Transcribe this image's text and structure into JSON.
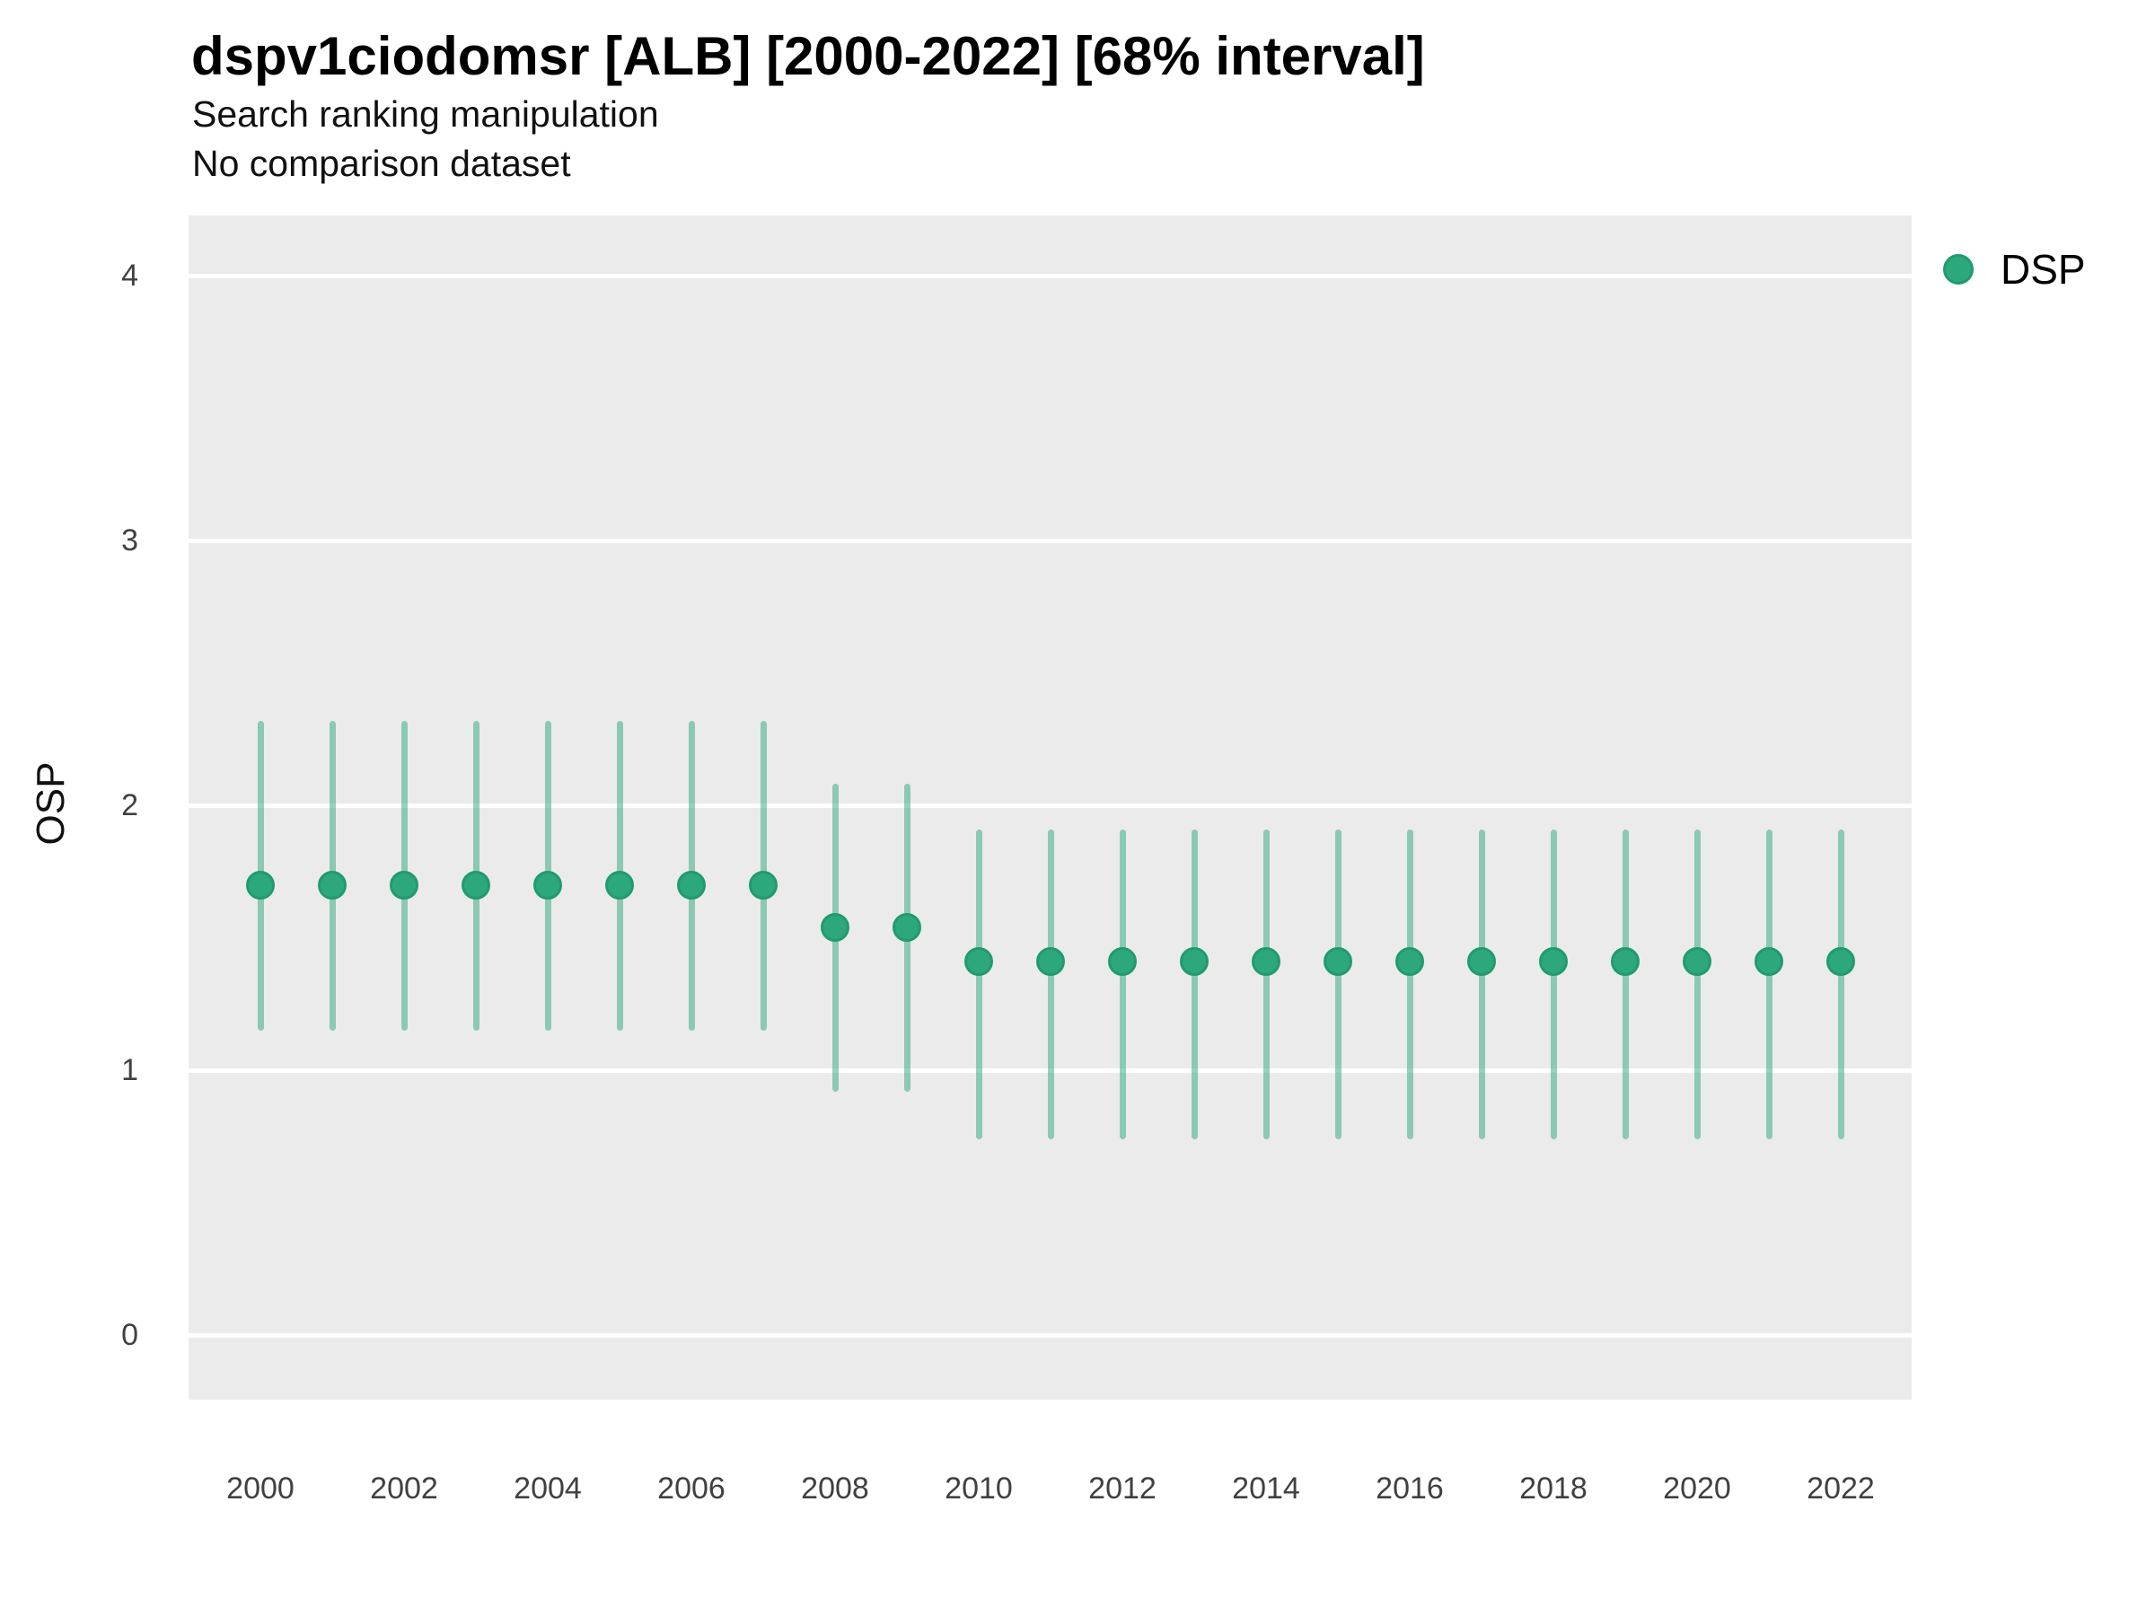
{
  "header": {
    "title": "dspv1ciodomsr [ALB] [2000-2022] [68% interval]",
    "subtitle": "Search ranking manipulation",
    "note": "No comparison dataset"
  },
  "y_axis": {
    "label": "OSP",
    "ticks": [
      0,
      1,
      2,
      3,
      4
    ]
  },
  "x_axis": {
    "ticks": [
      2000,
      2002,
      2004,
      2006,
      2008,
      2010,
      2012,
      2014,
      2016,
      2018,
      2020,
      2022
    ]
  },
  "legend": {
    "label": "DSP"
  },
  "colors": {
    "point": "#2ca87c",
    "point_border": "#219b6e",
    "interval": "rgba(44,168,124,0.5)",
    "panel": "#ebebeb",
    "gridline": "#ffffff",
    "tick_text": "#404040"
  },
  "chart_data": {
    "type": "scatter",
    "variant": "point-range (68% interval)",
    "title": "dspv1ciodomsr [ALB] [2000-2022] [68% interval]",
    "subtitle": "Search ranking manipulation",
    "note": "No comparison dataset",
    "xlabel": "",
    "ylabel": "OSP",
    "ylim": [
      -0.25,
      4.25
    ],
    "grid": "horizontal-major-only",
    "legend_position": "top-right",
    "x": [
      2000,
      2001,
      2002,
      2003,
      2004,
      2005,
      2006,
      2007,
      2008,
      2009,
      2010,
      2011,
      2012,
      2013,
      2014,
      2015,
      2016,
      2017,
      2018,
      2019,
      2020,
      2021,
      2022
    ],
    "series": [
      {
        "name": "DSP",
        "mid": [
          1.7,
          1.7,
          1.7,
          1.7,
          1.7,
          1.7,
          1.7,
          1.7,
          1.54,
          1.54,
          1.41,
          1.41,
          1.41,
          1.41,
          1.41,
          1.41,
          1.41,
          1.41,
          1.41,
          1.41,
          1.41,
          1.41,
          1.41
        ],
        "lo": [
          1.15,
          1.15,
          1.15,
          1.15,
          1.15,
          1.15,
          1.15,
          1.15,
          0.92,
          0.92,
          0.74,
          0.74,
          0.74,
          0.74,
          0.74,
          0.74,
          0.74,
          0.74,
          0.74,
          0.74,
          0.74,
          0.74,
          0.74
        ],
        "hi": [
          2.32,
          2.32,
          2.32,
          2.32,
          2.32,
          2.32,
          2.32,
          2.32,
          2.08,
          2.08,
          1.91,
          1.91,
          1.91,
          1.91,
          1.91,
          1.91,
          1.91,
          1.91,
          1.91,
          1.91,
          1.91,
          1.91,
          1.91
        ]
      }
    ]
  }
}
